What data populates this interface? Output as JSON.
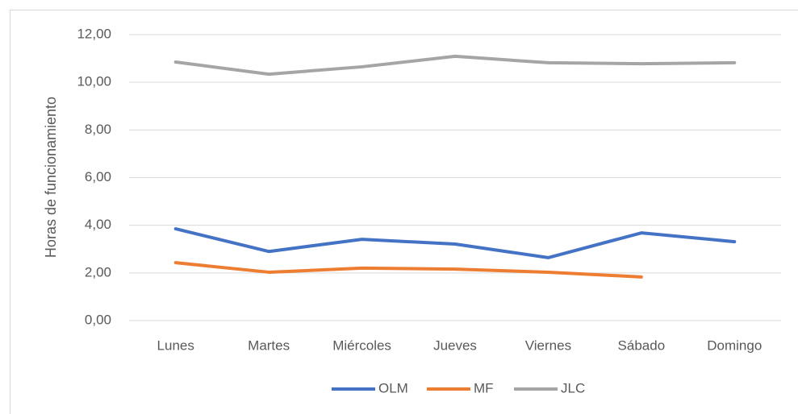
{
  "chart_data": {
    "type": "line",
    "y_label": "Horas de funcionamiento",
    "categories": [
      "Lunes",
      "Martes",
      "Miércoles",
      "Jueves",
      "Viernes",
      "Sábado",
      "Domingo"
    ],
    "series": [
      {
        "name": "OLM",
        "color": "#4472c4",
        "values": [
          3.85,
          2.9,
          3.41,
          3.21,
          2.64,
          3.68,
          3.31
        ]
      },
      {
        "name": "MF",
        "color": "#ed7d31",
        "values": [
          2.43,
          2.03,
          2.2,
          2.16,
          2.03,
          1.83,
          null
        ]
      },
      {
        "name": "JLC",
        "color": "#a5a5a5",
        "values": [
          10.85,
          10.34,
          10.65,
          11.09,
          10.82,
          10.78,
          10.82
        ]
      }
    ],
    "ylim": [
      0,
      12
    ],
    "yticks": [
      {
        "value": 0,
        "label": "0,00"
      },
      {
        "value": 2,
        "label": "2,00"
      },
      {
        "value": 4,
        "label": "4,00"
      },
      {
        "value": 6,
        "label": "6,00"
      },
      {
        "value": 8,
        "label": "8,00"
      },
      {
        "value": 10,
        "label": "10,00"
      },
      {
        "value": 12,
        "label": "12,00"
      }
    ],
    "grid": true,
    "legend": "bottom"
  }
}
